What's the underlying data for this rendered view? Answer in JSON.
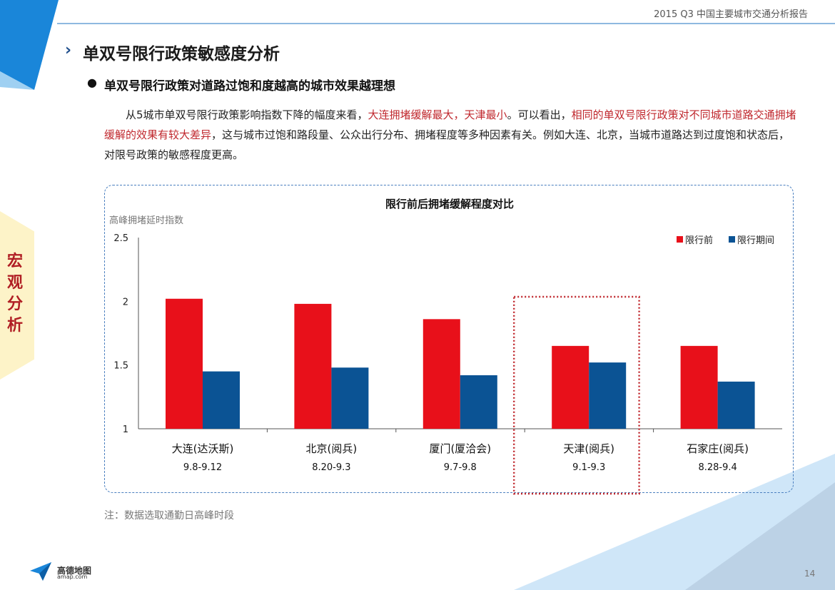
{
  "header": {
    "report_title": "2015 Q3 中国主要城市交通分析报告"
  },
  "section": {
    "chevron": "›",
    "title": "单双号限行政策敏感度分析"
  },
  "subtitle": {
    "bullet": "●",
    "text": "单双号限行政策对道路过饱和度越高的城市效果越理想"
  },
  "body": {
    "part1": "从5城市单双号限行政策影响指数下降的幅度来看，",
    "hl1": "大连拥堵缓解最大，天津最小",
    "part2": "。可以看出，",
    "hl2": "相同的单双号限行政策对不同城市道路交通拥堵缓解的效果有较大差异",
    "part3": "，这与城市过饱和路段量、公众出行分布、拥堵程度等多种因素有关。例如大连、北京，当城市道路达到过度饱和状态后，对限号政策的敏感程度更高。"
  },
  "side_tab": {
    "text": "宏观分析"
  },
  "chart_data": {
    "type": "bar",
    "title": "限行前后拥堵缓解程度对比",
    "ylabel": "高峰拥堵延时指数",
    "ylim": [
      1,
      2.5
    ],
    "yticks": [
      "1",
      "1.5",
      "2",
      "2.5"
    ],
    "categories": [
      "大连(达沃斯)",
      "北京(阅兵)",
      "厦门(厦洽会)",
      "天津(阅兵)",
      "石家庄(阅兵)"
    ],
    "date_ranges": [
      "9.8-9.12",
      "8.20-9.3",
      "9.7-9.8",
      "9.1-9.3",
      "8.28-9.4"
    ],
    "series": [
      {
        "name": "限行前",
        "color": "#e8101a",
        "values": [
          2.02,
          1.98,
          1.86,
          1.65,
          1.65
        ]
      },
      {
        "name": "限行期间",
        "color": "#0b5394",
        "values": [
          1.45,
          1.48,
          1.42,
          1.52,
          1.37
        ]
      }
    ],
    "highlight_category": 3,
    "legend": "top-right",
    "grid": false
  },
  "note": "注：数据选取通勤日高峰时段",
  "page_number": "14",
  "logo": {
    "name_cn": "高德地图",
    "name_en": "amap.com"
  },
  "colors": {
    "accent_blue": "#1f4e8c",
    "highlight_red": "#c0282e",
    "top_rule": "#8fb9e0"
  }
}
